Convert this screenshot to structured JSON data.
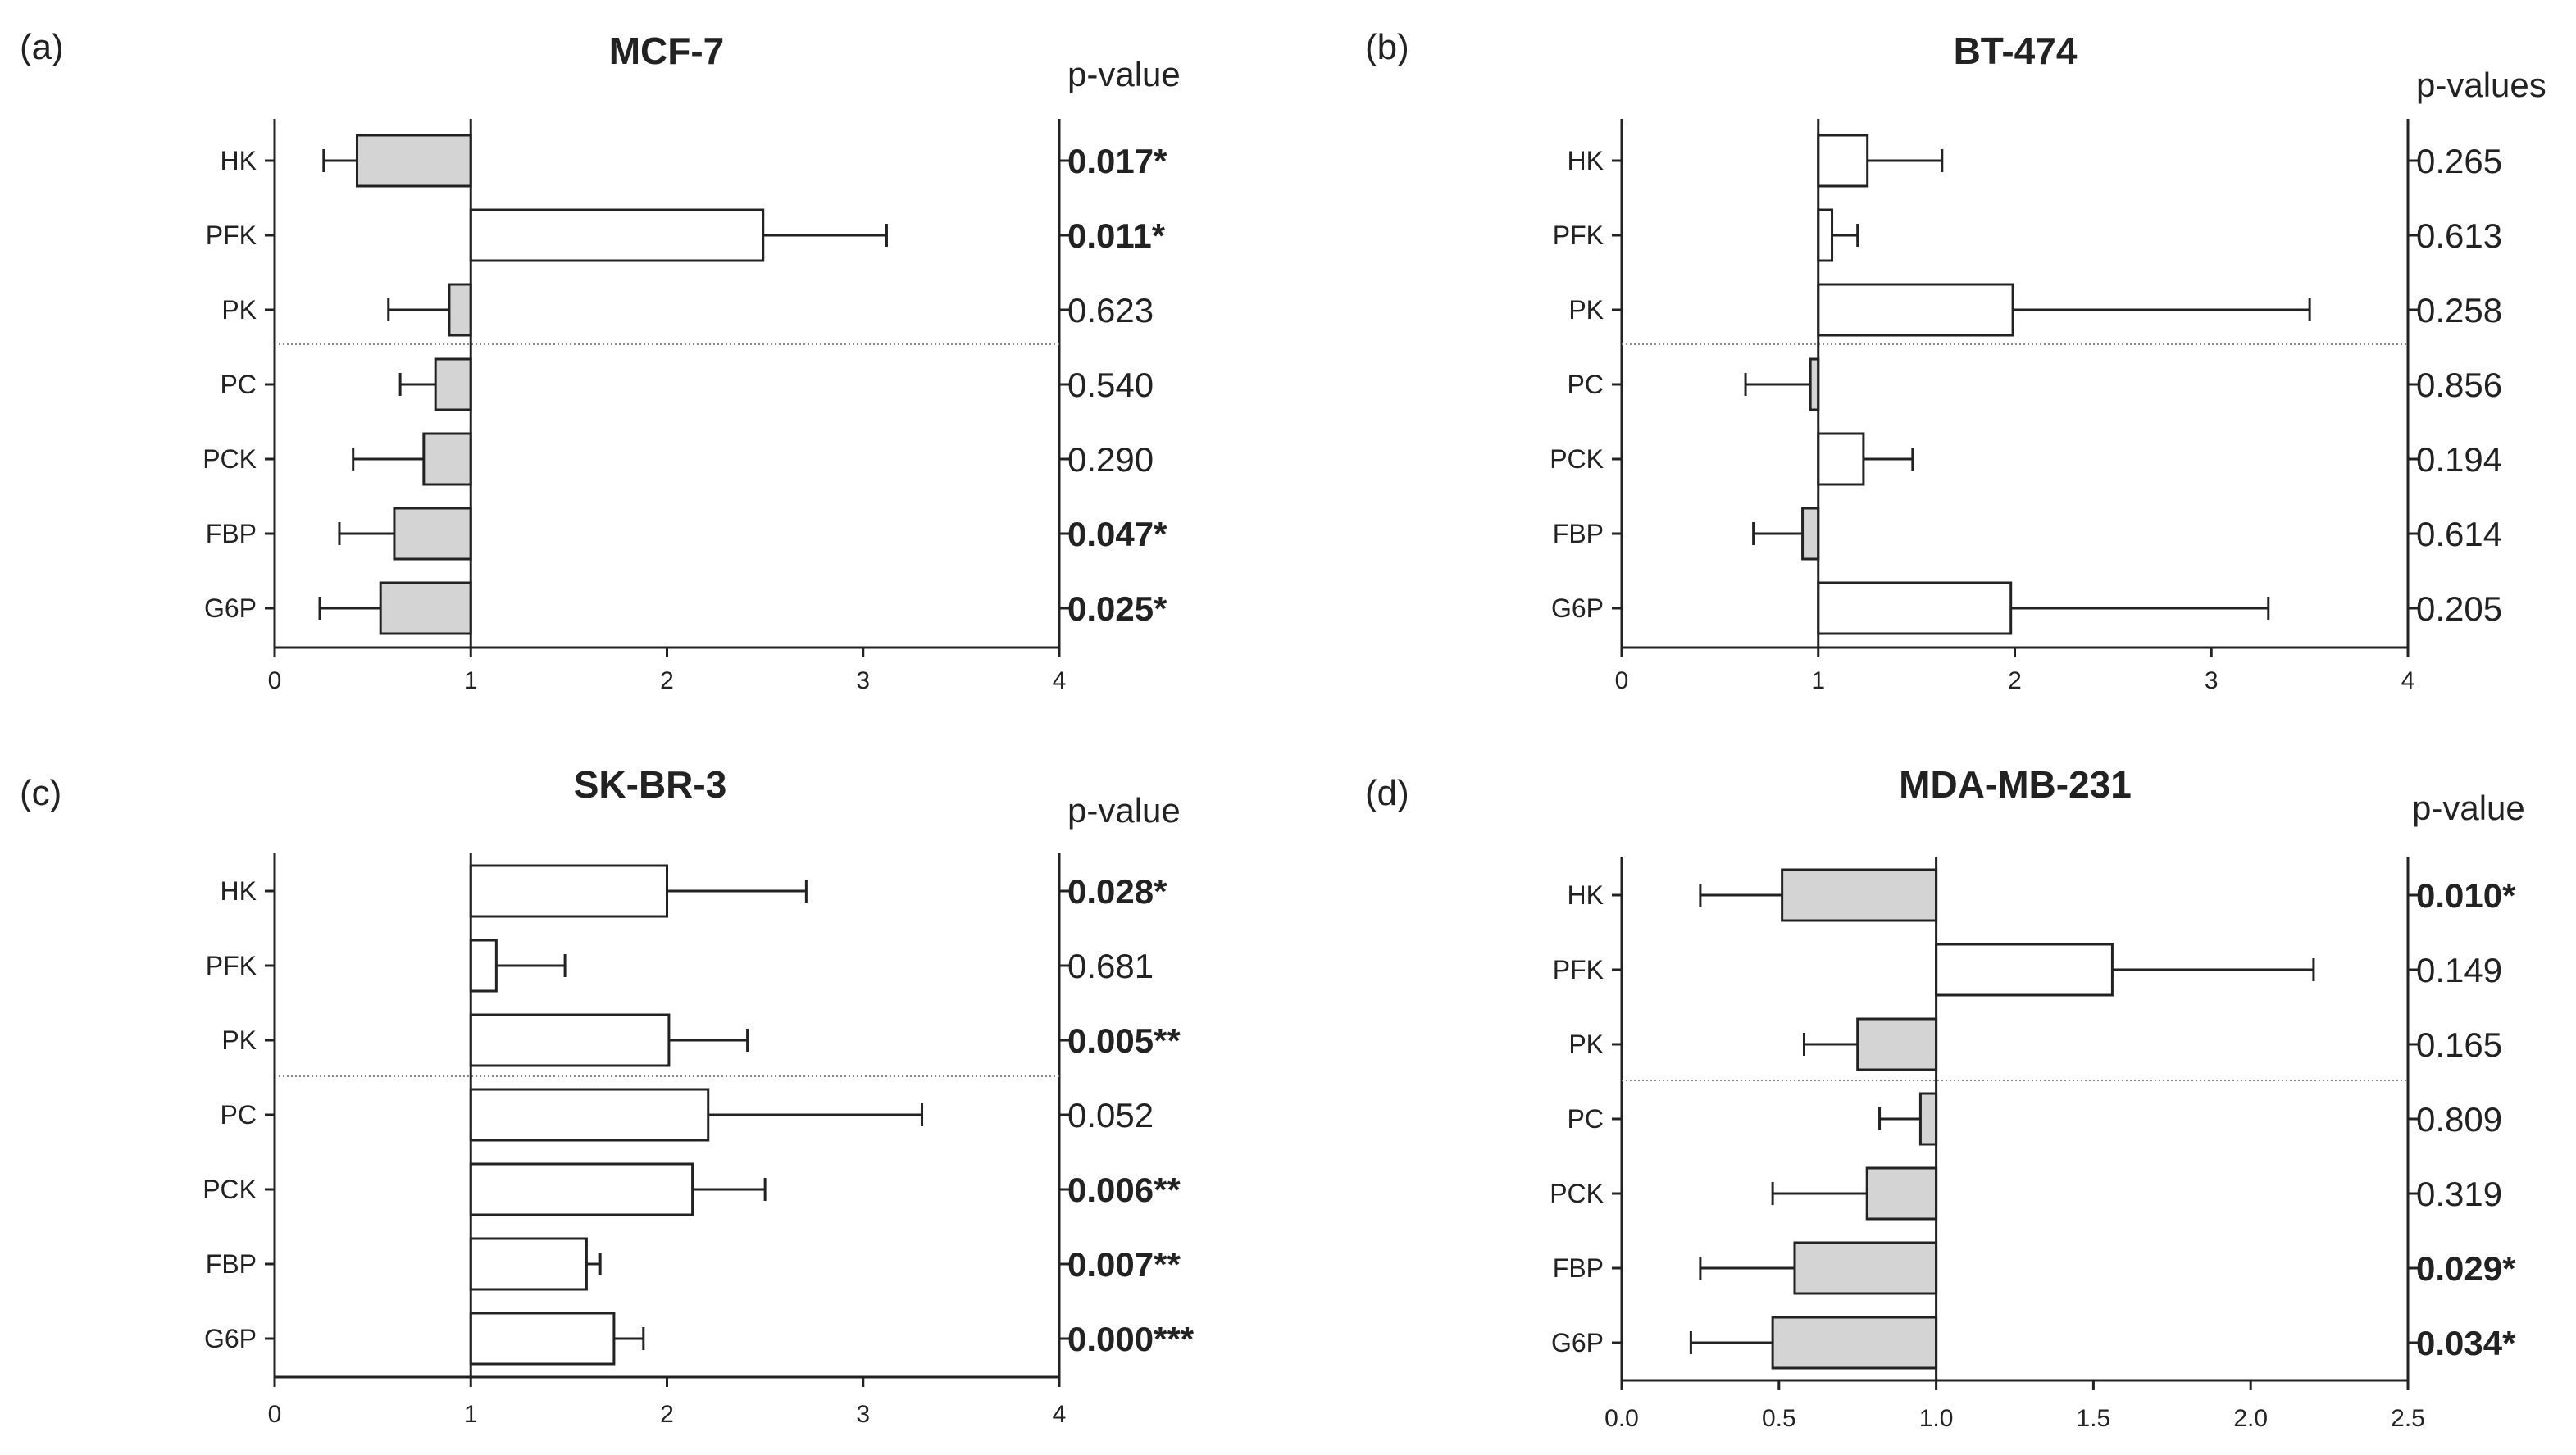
{
  "chart_data": [
    {
      "type": "bar",
      "orientation": "horizontal",
      "panel_label": "(a)",
      "title": "MCF-7",
      "pvalue_header": "p-value",
      "baseline": 1,
      "xlim": [
        0,
        4
      ],
      "xticks": [
        0,
        1,
        2,
        3,
        4
      ],
      "xtick_labels": [
        "0",
        "1",
        "2",
        "3",
        "4"
      ],
      "categories": [
        "HK",
        "PFK",
        "PK",
        "PC",
        "PCK",
        "FBP",
        "G6P"
      ],
      "values": [
        0.42,
        2.49,
        0.89,
        0.82,
        0.76,
        0.61,
        0.54
      ],
      "errors": [
        0.17,
        0.63,
        0.31,
        0.18,
        0.36,
        0.28,
        0.31
      ],
      "pvalues": [
        "0.017*",
        "0.011*",
        "0.623",
        "0.540",
        "0.290",
        "0.047*",
        "0.025*"
      ],
      "significant": [
        true,
        true,
        false,
        false,
        false,
        true,
        true
      ]
    },
    {
      "type": "bar",
      "orientation": "horizontal",
      "panel_label": "(b)",
      "title": "BT-474",
      "pvalue_header": "p-values",
      "baseline": 1,
      "xlim": [
        0,
        4
      ],
      "xticks": [
        0,
        1,
        2,
        3,
        4
      ],
      "xtick_labels": [
        "0",
        "1",
        "2",
        "3",
        "4"
      ],
      "categories": [
        "HK",
        "PFK",
        "PK",
        "PC",
        "PCK",
        "FBP",
        "G6P"
      ],
      "values": [
        1.25,
        1.07,
        1.99,
        0.96,
        1.23,
        0.92,
        1.98
      ],
      "errors": [
        0.38,
        0.13,
        1.51,
        0.33,
        0.25,
        0.25,
        1.31
      ],
      "pvalues": [
        "0.265",
        "0.613",
        "0.258",
        "0.856",
        "0.194",
        "0.614",
        "0.205"
      ],
      "significant": [
        false,
        false,
        false,
        false,
        false,
        false,
        false
      ]
    },
    {
      "type": "bar",
      "orientation": "horizontal",
      "panel_label": "(c)",
      "title": "SK-BR-3",
      "pvalue_header": "p-value",
      "baseline": 1,
      "xlim": [
        0,
        4
      ],
      "xticks": [
        0,
        1,
        2,
        3,
        4
      ],
      "xtick_labels": [
        "0",
        "1",
        "2",
        "3",
        "4"
      ],
      "categories": [
        "HK",
        "PFK",
        "PK",
        "PC",
        "PCK",
        "FBP",
        "G6P"
      ],
      "values": [
        2.0,
        1.13,
        2.01,
        2.21,
        2.13,
        1.59,
        1.73
      ],
      "errors": [
        0.71,
        0.35,
        0.4,
        1.09,
        0.37,
        0.07,
        0.15
      ],
      "pvalues": [
        "0.028*",
        "0.681",
        "0.005**",
        "0.052",
        "0.006**",
        "0.007**",
        "0.000***"
      ],
      "significant": [
        true,
        false,
        true,
        false,
        true,
        true,
        true
      ]
    },
    {
      "type": "bar",
      "orientation": "horizontal",
      "panel_label": "(d)",
      "title": "MDA-MB-231",
      "pvalue_header": "p-value",
      "baseline": 1,
      "xlim": [
        0,
        2.5
      ],
      "xticks": [
        0,
        0.5,
        1,
        1.5,
        2,
        2.5
      ],
      "xtick_labels": [
        "0.0",
        "0.5",
        "1.0",
        "1.5",
        "2.0",
        "2.5"
      ],
      "categories": [
        "HK",
        "PFK",
        "PK",
        "PC",
        "PCK",
        "FBP",
        "G6P"
      ],
      "values": [
        0.51,
        1.56,
        0.75,
        0.95,
        0.78,
        0.55,
        0.48
      ],
      "errors": [
        0.26,
        0.64,
        0.17,
        0.13,
        0.3,
        0.3,
        0.26
      ],
      "pvalues": [
        "0.010*",
        "0.149",
        "0.165",
        "0.809",
        "0.319",
        "0.029*",
        "0.034*"
      ],
      "significant": [
        true,
        false,
        false,
        false,
        false,
        true,
        true
      ]
    }
  ],
  "colors": {
    "below_baseline_fill": "#d4d4d4",
    "above_baseline_fill": "#ffffff",
    "stroke": "#222222",
    "divider": "#888888"
  }
}
